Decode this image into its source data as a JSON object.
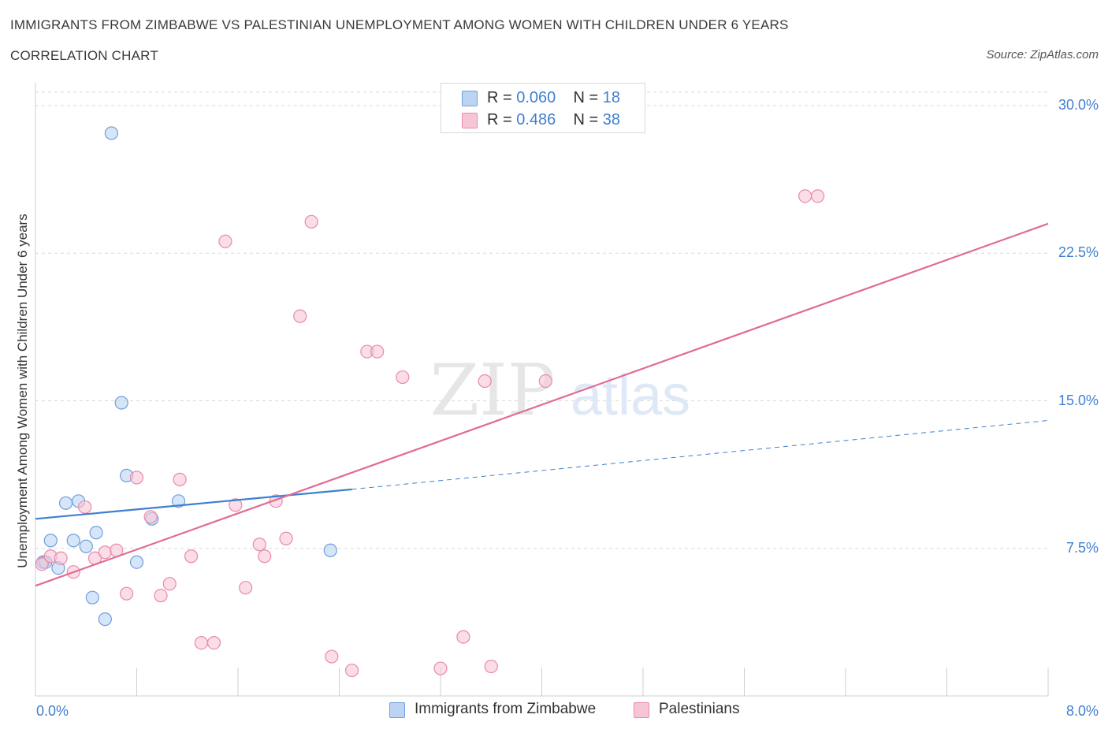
{
  "header": {
    "title": "IMMIGRANTS FROM ZIMBABWE VS PALESTINIAN UNEMPLOYMENT AMONG WOMEN WITH CHILDREN UNDER 6 YEARS",
    "subtitle": "CORRELATION CHART",
    "source": "Source: ZipAtlas.com"
  },
  "watermark": {
    "zip": "ZIP",
    "atlas": "atlas"
  },
  "colors": {
    "blue": "#3f7fd0",
    "blue_fill": "#bcd4f4",
    "blue_stroke": "#6f9fdc",
    "pink": "#e06b96",
    "pink_fill": "#f7c6d6",
    "pink_stroke": "#e88aac",
    "grid": "#d9d9d9"
  },
  "legend_top": {
    "rows": [
      {
        "r_label": "R = ",
        "r_value": "0.060",
        "n_label": "N = ",
        "n_value": "18",
        "color": "#bcd4f4"
      },
      {
        "r_label": "R = ",
        "r_value": "0.486",
        "n_label": "N = ",
        "n_value": "38",
        "color": "#f7c6d6"
      }
    ]
  },
  "legend_bottom": {
    "items": [
      {
        "label": "Immigrants from Zimbabwe",
        "color": "#bcd4f4"
      },
      {
        "label": "Palestinians",
        "color": "#f7c6d6"
      }
    ]
  },
  "chart_data": {
    "type": "scatter",
    "title": "IMMIGRANTS FROM ZIMBABWE VS PALESTINIAN UNEMPLOYMENT AMONG WOMEN WITH CHILDREN UNDER 6 YEARS",
    "xlabel": "",
    "ylabel": "Unemployment Among Women with Children Under 6 years",
    "xlim": [
      0.0,
      8.0
    ],
    "ylim": [
      0.0,
      30.0
    ],
    "x_tick_labels": [
      "0.0%",
      "8.0%"
    ],
    "y_ticks": [
      7.5,
      15.0,
      22.5,
      30.0
    ],
    "y_tick_labels": [
      "7.5%",
      "15.0%",
      "22.5%",
      "30.0%"
    ],
    "grid": true,
    "series": [
      {
        "name": "Immigrants from Zimbabwe",
        "color": "#3f7fd0",
        "points": [
          {
            "x": 0.06,
            "y": 6.8
          },
          {
            "x": 0.08,
            "y": 6.8
          },
          {
            "x": 0.12,
            "y": 7.9
          },
          {
            "x": 0.18,
            "y": 6.5
          },
          {
            "x": 0.24,
            "y": 9.8
          },
          {
            "x": 0.3,
            "y": 7.9
          },
          {
            "x": 0.34,
            "y": 9.9
          },
          {
            "x": 0.4,
            "y": 7.6
          },
          {
            "x": 0.45,
            "y": 5.0
          },
          {
            "x": 0.48,
            "y": 8.3
          },
          {
            "x": 0.55,
            "y": 3.9
          },
          {
            "x": 0.6,
            "y": 28.6
          },
          {
            "x": 0.68,
            "y": 14.9
          },
          {
            "x": 0.72,
            "y": 11.2
          },
          {
            "x": 0.8,
            "y": 6.8
          },
          {
            "x": 0.92,
            "y": 9.0
          },
          {
            "x": 1.13,
            "y": 9.9
          },
          {
            "x": 2.33,
            "y": 7.4
          }
        ],
        "trend": {
          "x": [
            0.0,
            2.5
          ],
          "y": [
            9.0,
            10.5
          ],
          "dashed_extension": {
            "x": [
              2.5,
              8.0
            ],
            "y": [
              10.5,
              14.0
            ]
          }
        }
      },
      {
        "name": "Palestinians",
        "color": "#e06b96",
        "points": [
          {
            "x": 0.05,
            "y": 6.7
          },
          {
            "x": 0.12,
            "y": 7.1
          },
          {
            "x": 0.2,
            "y": 7.0
          },
          {
            "x": 0.3,
            "y": 6.3
          },
          {
            "x": 0.39,
            "y": 9.6
          },
          {
            "x": 0.47,
            "y": 7.0
          },
          {
            "x": 0.55,
            "y": 7.3
          },
          {
            "x": 0.64,
            "y": 7.4
          },
          {
            "x": 0.72,
            "y": 5.2
          },
          {
            "x": 0.8,
            "y": 11.1
          },
          {
            "x": 0.91,
            "y": 9.1
          },
          {
            "x": 0.99,
            "y": 5.1
          },
          {
            "x": 1.06,
            "y": 5.7
          },
          {
            "x": 1.14,
            "y": 11.0
          },
          {
            "x": 1.23,
            "y": 7.1
          },
          {
            "x": 1.31,
            "y": 2.7
          },
          {
            "x": 1.41,
            "y": 2.7
          },
          {
            "x": 1.5,
            "y": 23.1
          },
          {
            "x": 1.58,
            "y": 9.7
          },
          {
            "x": 1.66,
            "y": 5.5
          },
          {
            "x": 1.77,
            "y": 7.7
          },
          {
            "x": 1.81,
            "y": 7.1
          },
          {
            "x": 1.9,
            "y": 9.9
          },
          {
            "x": 1.98,
            "y": 8.0
          },
          {
            "x": 2.09,
            "y": 19.3
          },
          {
            "x": 2.18,
            "y": 24.1
          },
          {
            "x": 2.34,
            "y": 2.0
          },
          {
            "x": 2.5,
            "y": 1.3
          },
          {
            "x": 2.62,
            "y": 17.5
          },
          {
            "x": 2.7,
            "y": 17.5
          },
          {
            "x": 2.9,
            "y": 16.2
          },
          {
            "x": 3.2,
            "y": 1.4
          },
          {
            "x": 3.38,
            "y": 3.0
          },
          {
            "x": 3.55,
            "y": 16.0
          },
          {
            "x": 3.6,
            "y": 1.5
          },
          {
            "x": 4.03,
            "y": 16.0
          },
          {
            "x": 6.08,
            "y": 25.4
          },
          {
            "x": 6.18,
            "y": 25.4
          }
        ],
        "trend": {
          "x": [
            0.0,
            8.0
          ],
          "y": [
            5.6,
            24.0
          ]
        }
      }
    ]
  }
}
